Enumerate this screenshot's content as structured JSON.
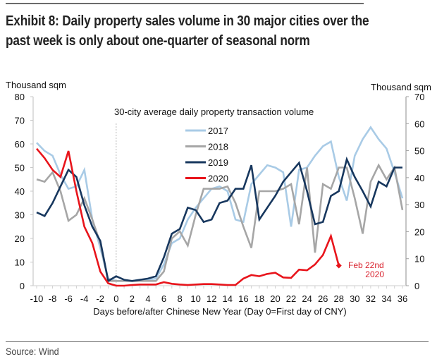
{
  "header": {
    "title_line1": "Exhibit 8: Daily property sales volume in 30 major cities over the",
    "title_line2": "past week is only about one-quarter of seasonal norm"
  },
  "footer": {
    "source": "Source: Wind"
  },
  "chart_data": {
    "type": "line",
    "title": "30-city average daily property transaction volume",
    "xlabel": "Days before/after Chinese New Year (Day 0=First day of CNY)",
    "ylabel_left": "Thousand sqm",
    "ylabel_right": "Thousand sqm",
    "ylim_left": [
      0,
      80
    ],
    "ylim_right": [
      0,
      70
    ],
    "yticks_left": [
      0,
      10,
      20,
      30,
      40,
      50,
      60,
      70,
      80
    ],
    "yticks_right": [
      0,
      10,
      20,
      30,
      40,
      50,
      60,
      70
    ],
    "xlim": [
      -10,
      36
    ],
    "xticks": [
      -10,
      -8,
      -6,
      -4,
      -2,
      0,
      2,
      4,
      6,
      8,
      10,
      12,
      14,
      16,
      18,
      20,
      22,
      24,
      26,
      28,
      30,
      32,
      34,
      36
    ],
    "x": [
      -10,
      -9,
      -8,
      -7,
      -6,
      -5,
      -4,
      -3,
      -2,
      -1,
      0,
      1,
      2,
      3,
      4,
      5,
      6,
      7,
      8,
      9,
      10,
      11,
      12,
      13,
      14,
      15,
      16,
      17,
      18,
      19,
      20,
      21,
      22,
      23,
      24,
      25,
      26,
      27,
      28,
      29,
      30,
      31,
      32,
      33,
      34,
      35,
      36
    ],
    "legend_position": "top-center",
    "grid": false,
    "vertical_marker_at": 0,
    "annotation": {
      "text_line1": "Feb 22nd",
      "text_line2": "2020",
      "x": 28,
      "y": 8.5
    },
    "series": [
      {
        "name": "2017",
        "color": "#a9cbe6",
        "values": [
          60.5,
          57,
          55,
          47,
          41,
          42,
          49,
          28,
          16,
          3,
          2,
          2,
          2,
          2.5,
          2.5,
          3,
          9,
          18,
          20,
          28,
          33,
          37,
          41,
          42,
          40,
          28,
          27,
          43,
          47,
          51,
          50,
          48,
          25,
          49,
          50,
          55,
          59,
          61,
          46,
          36,
          55,
          62,
          67,
          62,
          58,
          48,
          37
        ]
      },
      {
        "name": "2018",
        "color": "#a6a6a6",
        "values": [
          45,
          44,
          48,
          40,
          27.5,
          30,
          37,
          28,
          18,
          2,
          2,
          2,
          2,
          2,
          2,
          2,
          6,
          20,
          23,
          17,
          30,
          41,
          41,
          41,
          42,
          35,
          25,
          16,
          40,
          40,
          40,
          41,
          43,
          26,
          50,
          14,
          43,
          41,
          50,
          50,
          37,
          22,
          44,
          51,
          45,
          50,
          32
        ]
      },
      {
        "name": "2019",
        "color": "#17375e",
        "values": [
          31,
          29.5,
          35,
          42,
          49,
          46,
          34,
          25,
          19,
          2,
          4,
          2.5,
          2,
          2.5,
          3,
          4,
          12,
          22,
          24,
          33,
          32,
          27,
          28,
          35,
          36,
          41,
          41,
          51,
          28,
          33,
          38,
          44,
          48,
          52,
          40,
          26,
          27,
          38,
          40,
          53.5,
          46,
          40,
          33.5,
          44,
          42,
          50,
          50
        ]
      },
      {
        "name": "2020",
        "color": "#e8141b",
        "values": [
          58,
          54,
          49,
          46,
          57,
          40,
          25,
          18,
          6,
          1,
          0,
          0,
          0.3,
          0.5,
          0.5,
          0.5,
          1.5,
          0.8,
          0.5,
          0.3,
          0.5,
          0.7,
          0.7,
          0.5,
          0.3,
          0.3,
          3,
          4.5,
          4,
          5,
          5.5,
          3.5,
          3.3,
          6.8,
          6.5,
          9,
          13,
          21,
          8.5,
          null,
          null,
          null,
          null,
          null,
          null,
          null,
          null
        ]
      }
    ]
  }
}
